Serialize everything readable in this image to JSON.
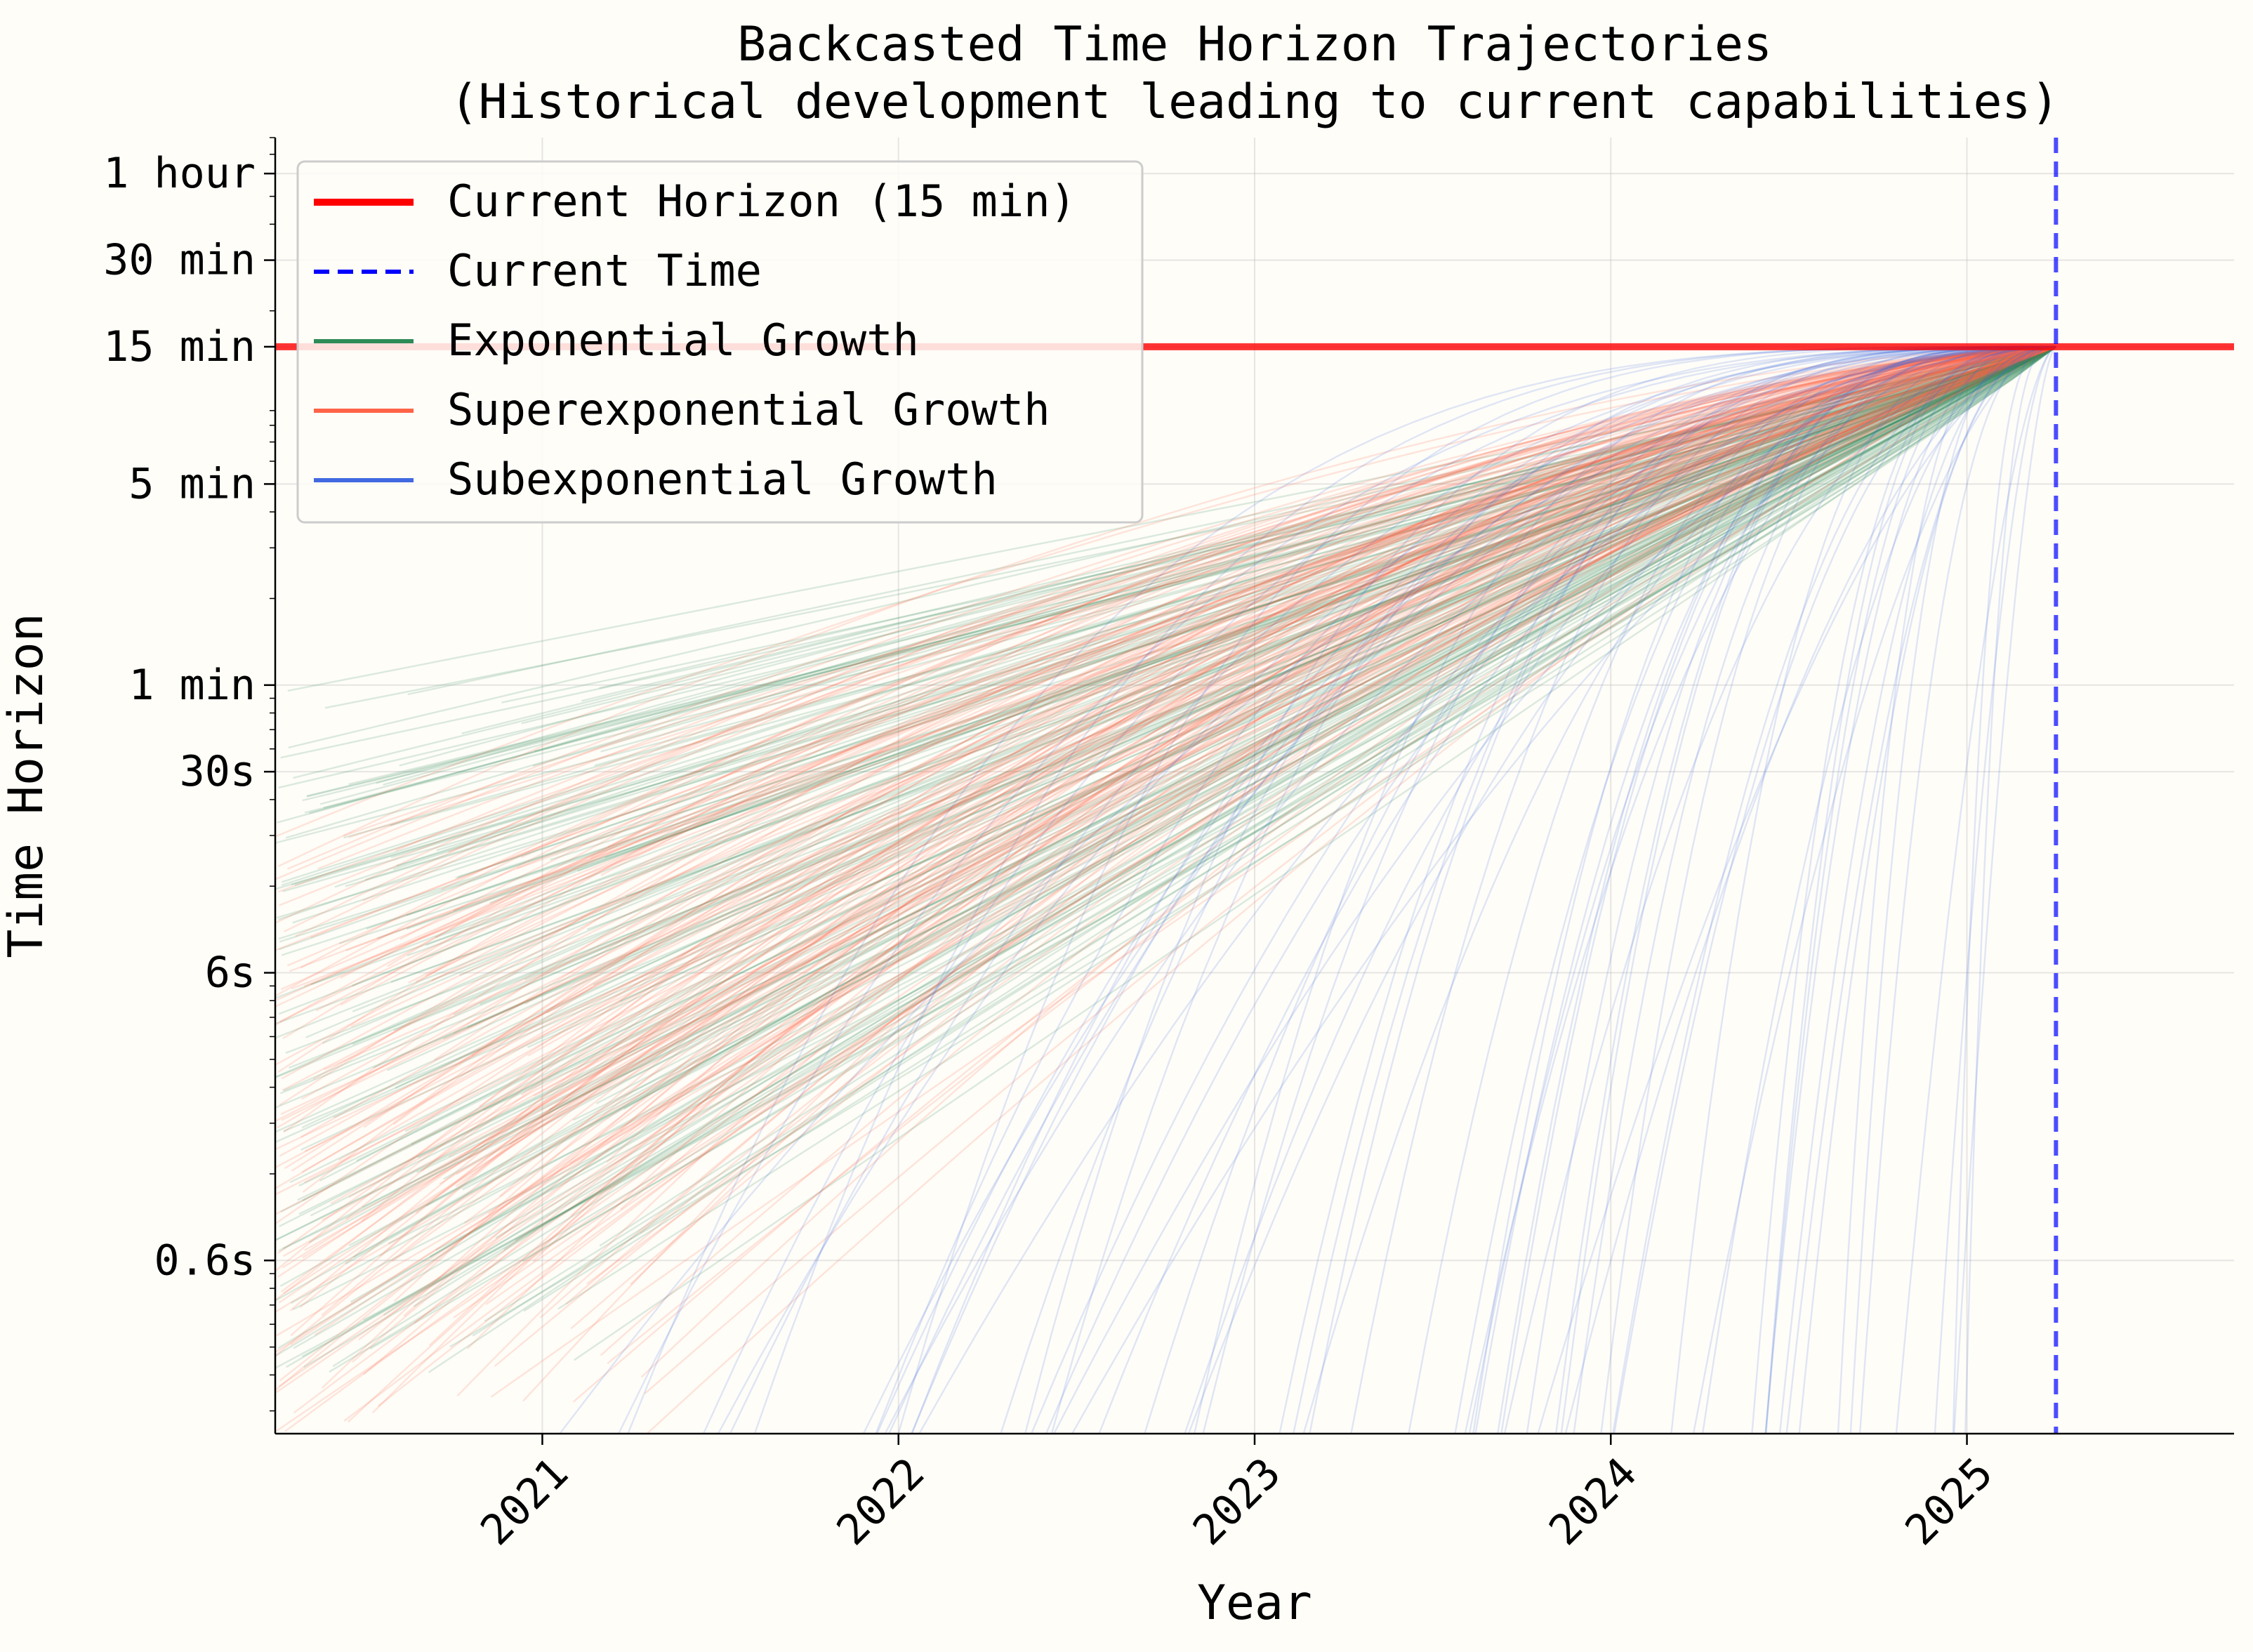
{
  "chart_data": {
    "type": "line",
    "title": [
      "Backcasted Time Horizon Trajectories",
      "(Historical development leading to current capabilities)"
    ],
    "xlabel": "Year",
    "ylabel": "Time Horizon",
    "x_scale": "linear (years)",
    "y_scale": "log (minutes)",
    "xlim": [
      2020.25,
      2025.75
    ],
    "ylim_minutes": [
      0.0025,
      80
    ],
    "x_ticks": [
      {
        "value": 2021,
        "label": "2021"
      },
      {
        "value": 2022,
        "label": "2022"
      },
      {
        "value": 2023,
        "label": "2023"
      },
      {
        "value": 2024,
        "label": "2024"
      },
      {
        "value": 2025,
        "label": "2025"
      }
    ],
    "y_ticks": [
      {
        "value": 0.01,
        "label": "0.6s"
      },
      {
        "value": 0.1,
        "label": "6s"
      },
      {
        "value": 0.5,
        "label": "30s"
      },
      {
        "value": 1,
        "label": "1 min"
      },
      {
        "value": 5,
        "label": "5 min"
      },
      {
        "value": 15,
        "label": "15 min"
      },
      {
        "value": 30,
        "label": "30 min"
      },
      {
        "value": 60,
        "label": "1 hour"
      }
    ],
    "grid": true,
    "legend_position": "upper-left",
    "current_horizon_minutes": 15,
    "current_time": 2025.25,
    "legend": [
      {
        "label": "Current Horizon (15 min)",
        "color": "#ff0000",
        "style": "solid-thick"
      },
      {
        "label": "Current Time",
        "color": "#0000ff",
        "style": "dashed"
      },
      {
        "label": "Exponential Growth",
        "color": "#2e8b57",
        "style": "solid"
      },
      {
        "label": "Superexponential Growth",
        "color": "#ff6347",
        "style": "solid"
      },
      {
        "label": "Subexponential Growth",
        "color": "#4169e1",
        "style": "solid"
      }
    ],
    "series": [
      {
        "growth": "exponential",
        "color": "#2e8b57",
        "count": 170,
        "start_year_range": [
          2020.25,
          2021.3
        ],
        "start_horizon_minutes_range": [
          0.004,
          1.0
        ],
        "end_year": 2025.25,
        "end_horizon_minutes": 15
      },
      {
        "growth": "superexponential",
        "color": "#ff6347",
        "count": 170,
        "start_year_range": [
          2020.25,
          2021.3
        ],
        "start_horizon_minutes_range": [
          0.0025,
          0.3
        ],
        "end_year": 2025.25,
        "end_horizon_minutes": 15
      },
      {
        "growth": "subexponential",
        "color": "#4169e1",
        "count": 70,
        "start_year_range": [
          2021.0,
          2025.0
        ],
        "start_horizon_minutes": 0.0025,
        "end_year": 2025.25,
        "end_horizon_minutes": 15
      }
    ]
  }
}
